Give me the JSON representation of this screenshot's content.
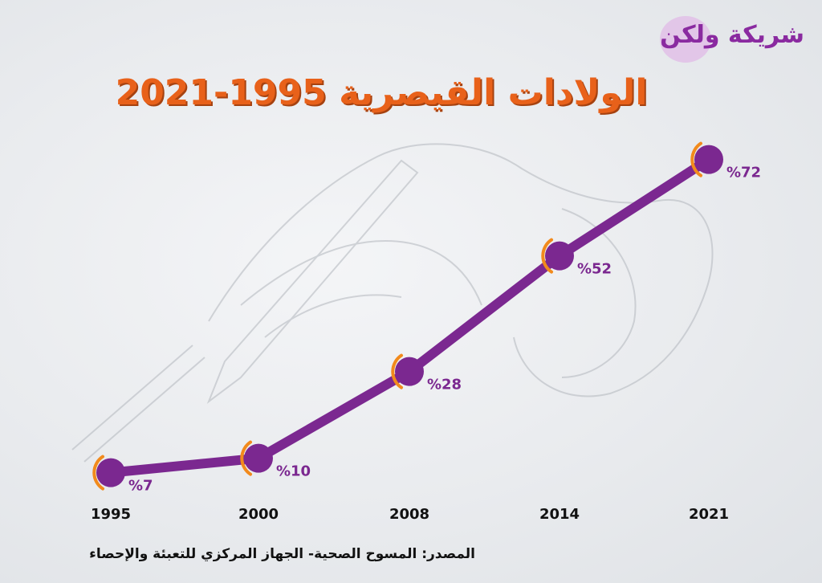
{
  "title": "الولادات القيصرية 1995-2021",
  "logo_text": "شريكة ولكن",
  "source": "المصدر: المسوح الصحية- الجهاز المركزي للتعبئة والإحصاء",
  "colors": {
    "line": "#7b2890",
    "bracket": "#f28a1c",
    "title": "#e8611a",
    "label": "#7b2890"
  },
  "chart_data": {
    "type": "line",
    "title": "الولادات القيصرية 1995-2021",
    "categories": [
      "1995",
      "2000",
      "2008",
      "2014",
      "2021"
    ],
    "values": [
      7,
      10,
      28,
      52,
      72
    ],
    "labels": [
      "%7",
      "%10",
      "%28",
      "%52",
      "%72"
    ],
    "unit": "%",
    "grid": false,
    "legend": "none"
  }
}
